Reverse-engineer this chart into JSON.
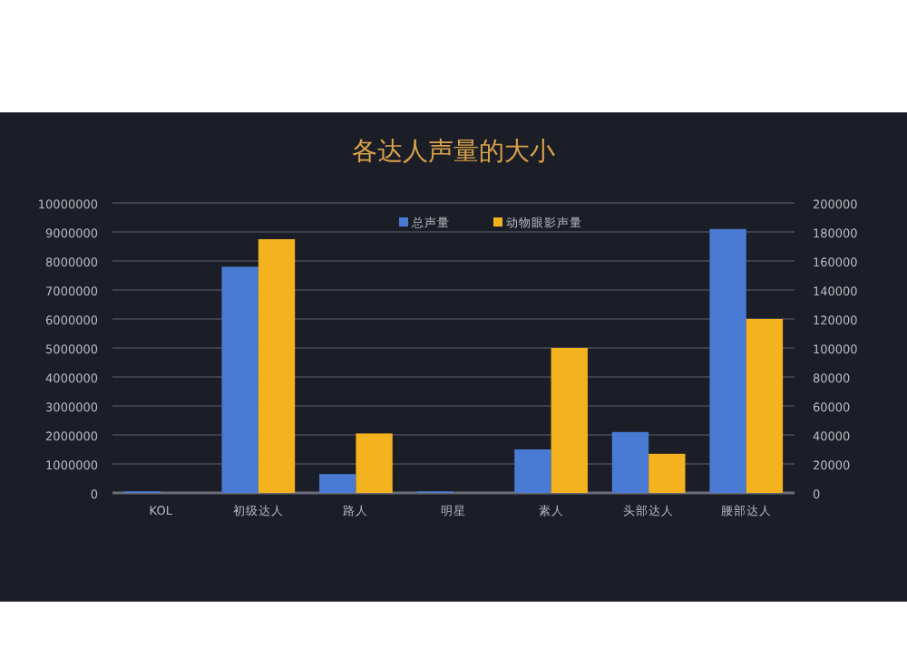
{
  "chart_data": {
    "type": "bar",
    "title": "各达人声量的大小",
    "categories": [
      "KOL",
      "初级达人",
      "路人",
      "明星",
      "素人",
      "头部达人",
      "腰部达人"
    ],
    "series": [
      {
        "name": "总声量",
        "color": "#4a7bd4",
        "values": [
          50000,
          7800000,
          650000,
          50000,
          1500000,
          2100000,
          9100000
        ]
      },
      {
        "name": "动物眼影声量",
        "color": "#f5b21f",
        "axis": "y2",
        "values": [
          0,
          175000,
          41000,
          0,
          100000,
          27000,
          120000
        ]
      }
    ],
    "ylim": [
      0,
      10000000
    ],
    "yticks": [
      0,
      1000000,
      2000000,
      3000000,
      4000000,
      5000000,
      6000000,
      7000000,
      8000000,
      9000000,
      10000000
    ],
    "y2lim": [
      0,
      200000
    ],
    "y2ticks": [
      0,
      20000,
      40000,
      60000,
      80000,
      100000,
      120000,
      140000,
      160000,
      180000,
      200000
    ],
    "grid": "y",
    "legend": "top"
  }
}
